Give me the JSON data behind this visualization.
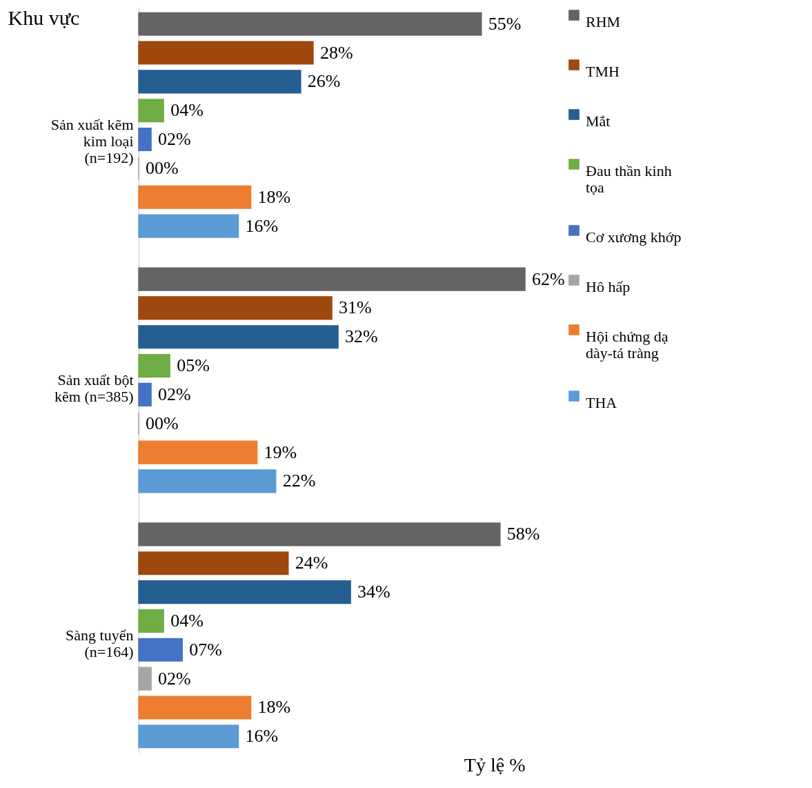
{
  "chart_data": {
    "type": "bar",
    "orientation": "horizontal",
    "ylabel": "Khu vực",
    "xlabel": "Tỷ lệ %",
    "categories": [
      "Sản xuất kẽm kim loại (n=192)",
      "Sản xuất bột kẽm (n=385)",
      "Sàng tuyển (n=164)"
    ],
    "series": [
      {
        "name": "RHM",
        "color": "#646464",
        "values": [
          55,
          62,
          58
        ],
        "value_labels": [
          "55%",
          "62%",
          "58%"
        ]
      },
      {
        "name": "TMH",
        "color": "#9e480e",
        "values": [
          28,
          31,
          24
        ],
        "value_labels": [
          "28%",
          "31%",
          "24%"
        ]
      },
      {
        "name": "Mắt",
        "color": "#255e91",
        "values": [
          26,
          32,
          34
        ],
        "value_labels": [
          "26%",
          "32%",
          "34%"
        ]
      },
      {
        "name": "Đau thần kinh tọa",
        "color": "#70ad47",
        "values": [
          4,
          5,
          4
        ],
        "value_labels": [
          "04%",
          "05%",
          "04%"
        ]
      },
      {
        "name": "Cơ xương khớp",
        "color": "#4472c4",
        "values": [
          2,
          2,
          7
        ],
        "value_labels": [
          "02%",
          "02%",
          "07%"
        ]
      },
      {
        "name": "Hô hấp",
        "color": "#a5a5a5",
        "values": [
          0,
          0,
          2
        ],
        "value_labels": [
          "00%",
          "00%",
          "02%"
        ]
      },
      {
        "name": "Hội chứng dạ dày-tá tràng",
        "color": "#ed7d31",
        "values": [
          18,
          19,
          18
        ],
        "value_labels": [
          "18%",
          "19%",
          "18%"
        ]
      },
      {
        "name": "THA",
        "color": "#5b9bd5",
        "values": [
          16,
          22,
          16
        ],
        "value_labels": [
          "16%",
          "22%",
          "16%"
        ]
      }
    ],
    "legend": "right",
    "tick_labels": "y"
  }
}
